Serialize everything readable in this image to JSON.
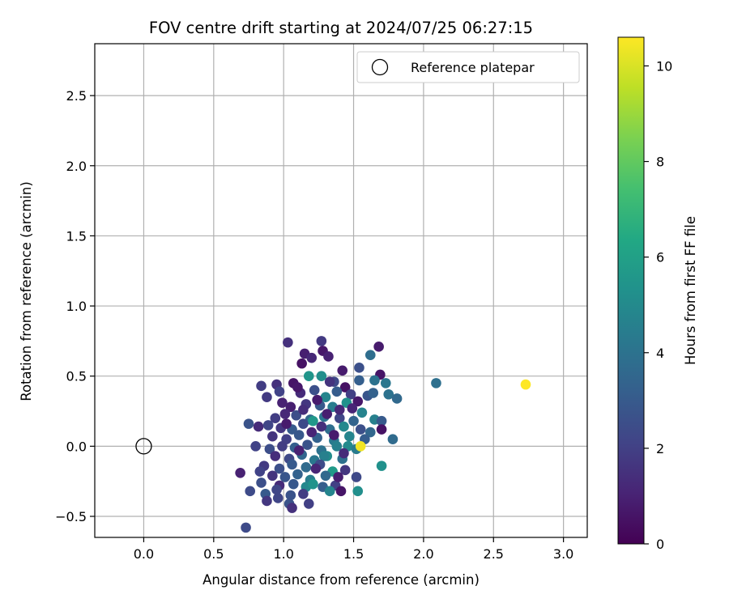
{
  "chart_data": {
    "type": "scatter",
    "title": "FOV centre drift starting at 2024/07/25 06:27:15",
    "xlabel": "Angular distance from reference (arcmin)",
    "ylabel": "Rotation from reference (arcmin)",
    "xlim": [
      -0.35,
      3.17
    ],
    "ylim": [
      -0.65,
      2.87
    ],
    "xticks": [
      "0.0",
      "0.5",
      "1.0",
      "1.5",
      "2.0",
      "2.5",
      "3.0"
    ],
    "xtick_values": [
      0.0,
      0.5,
      1.0,
      1.5,
      2.0,
      2.5,
      3.0
    ],
    "yticks": [
      "−0.5",
      "0.0",
      "0.5",
      "1.0",
      "1.5",
      "2.0",
      "2.5"
    ],
    "ytick_values": [
      -0.5,
      0.0,
      0.5,
      1.0,
      1.5,
      2.0,
      2.5
    ],
    "grid": true,
    "legend": {
      "placement": "top-right",
      "label": "Reference platepar"
    },
    "reference_point": {
      "x": 0.0,
      "y": 0.0
    },
    "colorbar": {
      "label": "Hours from first FF file",
      "range": [
        0,
        10.6
      ],
      "ticks": [
        "0",
        "2",
        "4",
        "6",
        "8",
        "10"
      ],
      "tick_values": [
        0,
        2,
        4,
        6,
        8,
        10
      ],
      "colormap": "viridis"
    },
    "points": [
      {
        "x": 1.03,
        "y": 0.74,
        "h": 1.5
      },
      {
        "x": 1.27,
        "y": 0.75,
        "h": 1.8
      },
      {
        "x": 1.68,
        "y": 0.71,
        "h": 0.8
      },
      {
        "x": 1.15,
        "y": 0.66,
        "h": 0.9
      },
      {
        "x": 1.2,
        "y": 0.63,
        "h": 1.2
      },
      {
        "x": 1.28,
        "y": 0.68,
        "h": 0.7
      },
      {
        "x": 1.32,
        "y": 0.64,
        "h": 1.0
      },
      {
        "x": 1.62,
        "y": 0.65,
        "h": 3.8
      },
      {
        "x": 1.54,
        "y": 0.56,
        "h": 2.6
      },
      {
        "x": 1.69,
        "y": 0.51,
        "h": 0.6
      },
      {
        "x": 1.13,
        "y": 0.59,
        "h": 0.5
      },
      {
        "x": 1.42,
        "y": 0.54,
        "h": 0.8
      },
      {
        "x": 1.27,
        "y": 0.5,
        "h": 5.2
      },
      {
        "x": 1.18,
        "y": 0.5,
        "h": 5.5
      },
      {
        "x": 1.65,
        "y": 0.47,
        "h": 4.0
      },
      {
        "x": 1.73,
        "y": 0.45,
        "h": 4.2
      },
      {
        "x": 2.09,
        "y": 0.45,
        "h": 3.9
      },
      {
        "x": 2.73,
        "y": 0.44,
        "h": 10.6
      },
      {
        "x": 1.54,
        "y": 0.47,
        "h": 3.2
      },
      {
        "x": 0.95,
        "y": 0.44,
        "h": 1.5
      },
      {
        "x": 0.84,
        "y": 0.43,
        "h": 1.9
      },
      {
        "x": 1.07,
        "y": 0.45,
        "h": 0.6
      },
      {
        "x": 1.36,
        "y": 0.46,
        "h": 2.3
      },
      {
        "x": 1.44,
        "y": 0.42,
        "h": 0.5
      },
      {
        "x": 1.6,
        "y": 0.36,
        "h": 2.8
      },
      {
        "x": 1.64,
        "y": 0.38,
        "h": 3.3
      },
      {
        "x": 1.75,
        "y": 0.37,
        "h": 4.0
      },
      {
        "x": 1.81,
        "y": 0.34,
        "h": 3.6
      },
      {
        "x": 0.88,
        "y": 0.35,
        "h": 1.8
      },
      {
        "x": 0.97,
        "y": 0.39,
        "h": 2.1
      },
      {
        "x": 1.12,
        "y": 0.38,
        "h": 1.3
      },
      {
        "x": 1.22,
        "y": 0.4,
        "h": 2.6
      },
      {
        "x": 1.38,
        "y": 0.39,
        "h": 3.1
      },
      {
        "x": 1.48,
        "y": 0.37,
        "h": 2.0
      },
      {
        "x": 1.53,
        "y": 0.32,
        "h": 0.7
      },
      {
        "x": 1.3,
        "y": 0.35,
        "h": 4.8
      },
      {
        "x": 1.05,
        "y": 0.28,
        "h": 0.9
      },
      {
        "x": 1.16,
        "y": 0.3,
        "h": 1.7
      },
      {
        "x": 1.26,
        "y": 0.29,
        "h": 2.9
      },
      {
        "x": 1.35,
        "y": 0.28,
        "h": 4.4
      },
      {
        "x": 1.45,
        "y": 0.31,
        "h": 5.3
      },
      {
        "x": 1.56,
        "y": 0.24,
        "h": 4.7
      },
      {
        "x": 1.01,
        "y": 0.23,
        "h": 1.2
      },
      {
        "x": 0.94,
        "y": 0.2,
        "h": 1.9
      },
      {
        "x": 1.09,
        "y": 0.22,
        "h": 2.5
      },
      {
        "x": 1.19,
        "y": 0.19,
        "h": 3.6
      },
      {
        "x": 1.29,
        "y": 0.21,
        "h": 4.1
      },
      {
        "x": 1.4,
        "y": 0.2,
        "h": 2.2
      },
      {
        "x": 1.5,
        "y": 0.18,
        "h": 3.4
      },
      {
        "x": 1.65,
        "y": 0.19,
        "h": 4.6
      },
      {
        "x": 1.7,
        "y": 0.18,
        "h": 3.0
      },
      {
        "x": 1.7,
        "y": 0.12,
        "h": 0.5
      },
      {
        "x": 0.82,
        "y": 0.14,
        "h": 1.3
      },
      {
        "x": 0.75,
        "y": 0.16,
        "h": 2.7
      },
      {
        "x": 0.89,
        "y": 0.15,
        "h": 2.2
      },
      {
        "x": 0.98,
        "y": 0.13,
        "h": 1.7
      },
      {
        "x": 1.06,
        "y": 0.12,
        "h": 3.0
      },
      {
        "x": 1.14,
        "y": 0.16,
        "h": 2.4
      },
      {
        "x": 1.21,
        "y": 0.18,
        "h": 5.6
      },
      {
        "x": 1.33,
        "y": 0.12,
        "h": 3.8
      },
      {
        "x": 1.43,
        "y": 0.14,
        "h": 4.9
      },
      {
        "x": 1.55,
        "y": 0.12,
        "h": 2.6
      },
      {
        "x": 1.62,
        "y": 0.1,
        "h": 3.5
      },
      {
        "x": 0.92,
        "y": 0.07,
        "h": 1.6
      },
      {
        "x": 1.02,
        "y": 0.05,
        "h": 2.0
      },
      {
        "x": 1.11,
        "y": 0.08,
        "h": 2.9
      },
      {
        "x": 1.24,
        "y": 0.06,
        "h": 3.3
      },
      {
        "x": 1.36,
        "y": 0.04,
        "h": 4.3
      },
      {
        "x": 1.47,
        "y": 0.07,
        "h": 4.8
      },
      {
        "x": 1.58,
        "y": 0.05,
        "h": 3.1
      },
      {
        "x": 1.78,
        "y": 0.05,
        "h": 3.7
      },
      {
        "x": 0.8,
        "y": 0.0,
        "h": 2.1
      },
      {
        "x": 0.9,
        "y": -0.02,
        "h": 2.5
      },
      {
        "x": 0.99,
        "y": 0.0,
        "h": 1.9
      },
      {
        "x": 1.08,
        "y": -0.01,
        "h": 3.2
      },
      {
        "x": 1.17,
        "y": 0.01,
        "h": 2.7
      },
      {
        "x": 1.27,
        "y": -0.03,
        "h": 4.0
      },
      {
        "x": 1.38,
        "y": 0.0,
        "h": 4.6
      },
      {
        "x": 1.46,
        "y": 0.0,
        "h": 5.0
      },
      {
        "x": 1.52,
        "y": -0.02,
        "h": 4.4
      },
      {
        "x": 1.55,
        "y": 0.0,
        "h": 10.4
      },
      {
        "x": 0.94,
        "y": -0.07,
        "h": 1.4
      },
      {
        "x": 1.04,
        "y": -0.09,
        "h": 2.3
      },
      {
        "x": 1.13,
        "y": -0.06,
        "h": 3.5
      },
      {
        "x": 1.22,
        "y": -0.1,
        "h": 4.2
      },
      {
        "x": 1.31,
        "y": -0.07,
        "h": 5.1
      },
      {
        "x": 1.42,
        "y": -0.09,
        "h": 3.9
      },
      {
        "x": 1.29,
        "y": -0.07,
        "h": 4.6
      },
      {
        "x": 0.86,
        "y": -0.14,
        "h": 1.8
      },
      {
        "x": 0.97,
        "y": -0.16,
        "h": 2.6
      },
      {
        "x": 1.06,
        "y": -0.13,
        "h": 3.0
      },
      {
        "x": 1.16,
        "y": -0.15,
        "h": 3.7
      },
      {
        "x": 1.26,
        "y": -0.13,
        "h": 2.4
      },
      {
        "x": 1.35,
        "y": -0.18,
        "h": 5.7
      },
      {
        "x": 1.7,
        "y": -0.14,
        "h": 5.3
      },
      {
        "x": 0.69,
        "y": -0.19,
        "h": 1.0
      },
      {
        "x": 0.83,
        "y": -0.18,
        "h": 2.1
      },
      {
        "x": 0.92,
        "y": -0.21,
        "h": 1.6
      },
      {
        "x": 1.01,
        "y": -0.22,
        "h": 2.8
      },
      {
        "x": 1.1,
        "y": -0.2,
        "h": 3.3
      },
      {
        "x": 1.19,
        "y": -0.24,
        "h": 4.5
      },
      {
        "x": 1.3,
        "y": -0.21,
        "h": 3.6
      },
      {
        "x": 1.44,
        "y": -0.17,
        "h": 1.7
      },
      {
        "x": 1.52,
        "y": -0.22,
        "h": 2.3
      },
      {
        "x": 0.84,
        "y": -0.26,
        "h": 2.6
      },
      {
        "x": 0.97,
        "y": -0.28,
        "h": 1.3
      },
      {
        "x": 1.07,
        "y": -0.27,
        "h": 2.9
      },
      {
        "x": 1.16,
        "y": -0.29,
        "h": 4.9
      },
      {
        "x": 1.21,
        "y": -0.27,
        "h": 5.4
      },
      {
        "x": 1.28,
        "y": -0.29,
        "h": 3.2
      },
      {
        "x": 1.37,
        "y": -0.28,
        "h": 2.0
      },
      {
        "x": 0.76,
        "y": -0.32,
        "h": 2.4
      },
      {
        "x": 0.87,
        "y": -0.34,
        "h": 3.0
      },
      {
        "x": 0.95,
        "y": -0.31,
        "h": 2.2
      },
      {
        "x": 1.05,
        "y": -0.35,
        "h": 2.7
      },
      {
        "x": 1.14,
        "y": -0.34,
        "h": 1.9
      },
      {
        "x": 1.33,
        "y": -0.32,
        "h": 4.8
      },
      {
        "x": 1.53,
        "y": -0.32,
        "h": 5.2
      },
      {
        "x": 1.41,
        "y": -0.32,
        "h": 0.6
      },
      {
        "x": 0.88,
        "y": -0.39,
        "h": 1.7
      },
      {
        "x": 0.96,
        "y": -0.37,
        "h": 2.2
      },
      {
        "x": 1.04,
        "y": -0.41,
        "h": 2.7
      },
      {
        "x": 1.06,
        "y": -0.44,
        "h": 1.5
      },
      {
        "x": 1.18,
        "y": -0.41,
        "h": 2.0
      },
      {
        "x": 0.73,
        "y": -0.58,
        "h": 2.4
      },
      {
        "x": 1.39,
        "y": -0.22,
        "h": 0.9
      },
      {
        "x": 1.24,
        "y": 0.33,
        "h": 0.8
      },
      {
        "x": 1.14,
        "y": 0.26,
        "h": 1.4
      },
      {
        "x": 1.31,
        "y": 0.23,
        "h": 0.9
      },
      {
        "x": 1.4,
        "y": 0.26,
        "h": 1.2
      },
      {
        "x": 1.1,
        "y": 0.42,
        "h": 0.7
      },
      {
        "x": 1.33,
        "y": 0.46,
        "h": 1.6
      },
      {
        "x": 1.49,
        "y": 0.27,
        "h": 1.1
      },
      {
        "x": 1.2,
        "y": 0.1,
        "h": 1.1
      },
      {
        "x": 1.27,
        "y": 0.14,
        "h": 1.5
      },
      {
        "x": 1.36,
        "y": 0.08,
        "h": 0.8
      },
      {
        "x": 1.43,
        "y": -0.05,
        "h": 1.3
      },
      {
        "x": 1.11,
        "y": -0.03,
        "h": 1.0
      },
      {
        "x": 1.02,
        "y": 0.16,
        "h": 0.8
      },
      {
        "x": 0.99,
        "y": 0.31,
        "h": 1.0
      },
      {
        "x": 1.23,
        "y": -0.16,
        "h": 1.1
      }
    ]
  }
}
